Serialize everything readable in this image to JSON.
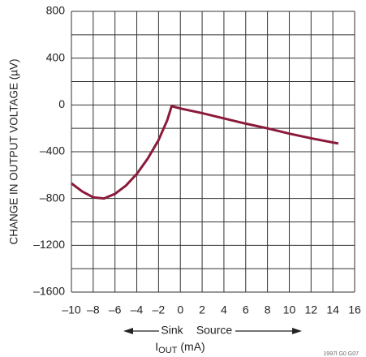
{
  "chart_data": {
    "type": "line",
    "ylabel": "CHANGE IN OUTPUT VOLTAGE (µV)",
    "xlabel": "I",
    "xlabel_sub": "OUT",
    "xlabel_unit": "(mA)",
    "annotations": [
      "Sink",
      "Source"
    ],
    "figure_id": "1997l G0 G07",
    "x": [
      -10,
      -9,
      -8,
      -7,
      -6,
      -5,
      -4,
      -3,
      -2,
      -1.2,
      -0.8,
      0,
      2,
      4,
      6,
      8,
      10,
      12,
      14.5
    ],
    "series": [
      {
        "color": "#8b1a3a",
        "values": [
          -670,
          -740,
          -790,
          -800,
          -760,
          -690,
          -590,
          -460,
          -300,
          -130,
          -10,
          -30,
          -70,
          -115,
          -160,
          -200,
          -245,
          -285,
          -330
        ]
      }
    ],
    "xlim": [
      -10,
      16
    ],
    "xticks": [
      {
        "value": -10,
        "label": "–10"
      },
      {
        "value": -8,
        "label": "–8"
      },
      {
        "value": -6,
        "label": "–6"
      },
      {
        "value": -4,
        "label": "–4"
      },
      {
        "value": -2,
        "label": "–2"
      },
      0,
      2,
      4,
      6,
      8,
      10,
      12,
      14,
      16
    ],
    "ylim": [
      -1600,
      800
    ],
    "yticks": [
      {
        "value": -1600,
        "label": "–1600"
      },
      {
        "value": -1200,
        "label": "–1200"
      },
      {
        "value": -800,
        "label": "–800"
      },
      {
        "value": -400,
        "label": "–400"
      },
      0,
      400,
      800
    ],
    "y_minor_ticks": [
      -1400,
      -1000,
      -600,
      -200,
      200,
      600
    ],
    "grid": true
  }
}
